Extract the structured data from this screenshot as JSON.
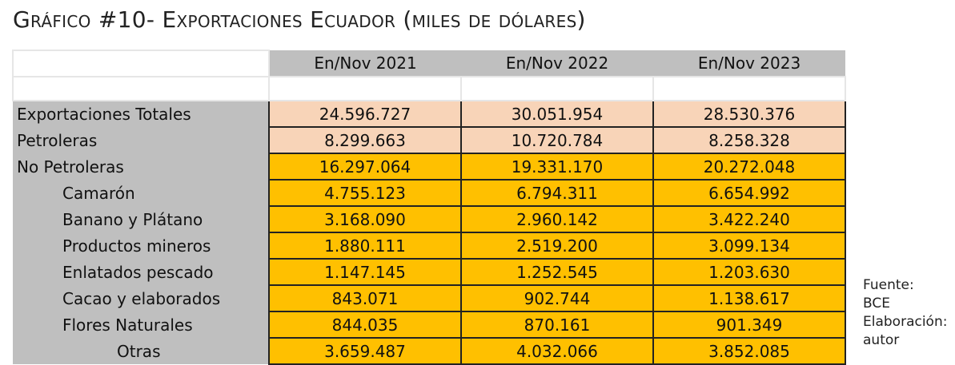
{
  "title": "Gráfico #10- Exportaciones Ecuador (miles de dólares)",
  "columns": [
    "En/Nov 2021",
    "En/Nov 2022",
    "En/Nov 2023"
  ],
  "rows": [
    {
      "label": "Exportaciones Totales",
      "values": [
        "24.596.727",
        "30.051.954",
        "28.530.376"
      ]
    },
    {
      "label": "Petroleras",
      "values": [
        "8.299.663",
        "10.720.784",
        "8.258.328"
      ]
    },
    {
      "label": "No Petroleras",
      "values": [
        "16.297.064",
        "19.331.170",
        "20.272.048"
      ]
    },
    {
      "label": "Camarón",
      "values": [
        "4.755.123",
        "6.794.311",
        "6.654.992"
      ]
    },
    {
      "label": "Banano y Plátano",
      "values": [
        "3.168.090",
        "2.960.142",
        "3.422.240"
      ]
    },
    {
      "label": "Productos mineros",
      "values": [
        "1.880.111",
        "2.519.200",
        "3.099.134"
      ]
    },
    {
      "label": "Enlatados pescado",
      "values": [
        "1.147.145",
        "1.252.545",
        "1.203.630"
      ]
    },
    {
      "label": "Cacao y elaborados",
      "values": [
        "843.071",
        "902.744",
        "1.138.617"
      ]
    },
    {
      "label": "Flores Naturales",
      "values": [
        "844.035",
        "870.161",
        "901.349"
      ]
    },
    {
      "label": "Otras",
      "values": [
        "3.659.487",
        "4.032.066",
        "3.852.085"
      ]
    }
  ],
  "note": [
    "Fuente:",
    "BCE",
    "Elaboración:",
    "autor"
  ],
  "colors": {
    "header": "#bfbfbf",
    "peach": "#f8d4b8",
    "gold": "#ffc000"
  }
}
